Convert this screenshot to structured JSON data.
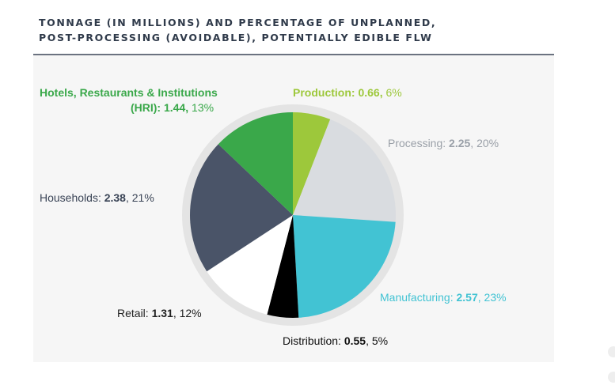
{
  "title": {
    "line1": "TONNAGE (IN MILLIONS) AND PERCENTAGE OF UNPLANNED,",
    "line2": "POST-PROCESSING (AVOIDABLE), POTENTIALLY EDIBLE FLW"
  },
  "colors": {
    "production": "#9dc83b",
    "processing": "#d9dce0",
    "manufacturing": "#42c3d3",
    "distribution": "#000000",
    "retail": "#ffffff",
    "households": "#4a5468",
    "hri": "#3aa84a"
  },
  "labels": {
    "production": {
      "name": "Production:",
      "value": "0.66",
      "pct": "6%"
    },
    "processing": {
      "name": "Processing:",
      "value": "2.25",
      "pct": "20%"
    },
    "manufacturing": {
      "name": "Manufacturing:",
      "value": "2.57",
      "pct": "23%"
    },
    "distribution": {
      "name": "Distribution:",
      "value": "0.55",
      "pct": "5%"
    },
    "retail": {
      "name": "Retail:",
      "value": "1.31",
      "pct": "12%"
    },
    "households": {
      "name": "Households:",
      "value": "2.38",
      "pct": "21%"
    },
    "hri": {
      "name_line1": "Hotels, Restaurants & Institutions",
      "name_line2": "(HRI):",
      "value": "1.44",
      "pct": "13%"
    }
  },
  "chart_data": {
    "type": "pie",
    "title": "TONNAGE (IN MILLIONS) AND PERCENTAGE OF UNPLANNED, POST-PROCESSING (AVOIDABLE), POTENTIALLY EDIBLE FLW",
    "categories": [
      "Production",
      "Processing",
      "Manufacturing",
      "Distribution",
      "Retail",
      "Households",
      "Hotels, Restaurants & Institutions (HRI)"
    ],
    "values": [
      0.66,
      2.25,
      2.57,
      0.55,
      1.31,
      2.38,
      1.44
    ],
    "percentages": [
      6,
      20,
      23,
      5,
      12,
      21,
      13
    ],
    "unit": "millions of tons"
  }
}
